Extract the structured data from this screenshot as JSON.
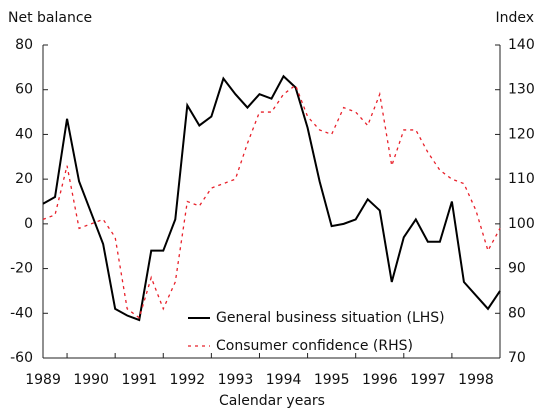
{
  "chart_data": {
    "type": "line",
    "y_label": "Net balance",
    "y2_label": "Index",
    "x_label": "Calendar years",
    "x": [
      1988.5,
      1988.75,
      1989,
      1989.25,
      1989.5,
      1989.75,
      1990,
      1990.25,
      1990.5,
      1990.75,
      1991,
      1991.25,
      1991.5,
      1991.75,
      1992,
      1992.25,
      1992.5,
      1992.75,
      1993,
      1993.25,
      1993.5,
      1993.75,
      1994,
      1994.25,
      1994.5,
      1994.75,
      1995,
      1995.25,
      1995.5,
      1995.75,
      1996,
      1996.25,
      1996.5,
      1996.75,
      1997,
      1997.25,
      1997.5,
      1997.75,
      1998
    ],
    "series": [
      {
        "name": "General business situation (LHS)",
        "color": "#000000",
        "dash": false,
        "values": [
          9,
          12,
          47,
          19,
          5,
          -9,
          -38,
          -41,
          -43,
          -12,
          -12,
          2,
          53,
          44,
          48,
          65,
          58,
          52,
          58,
          56,
          66,
          61,
          43,
          19,
          -1,
          0,
          2,
          11,
          6,
          -26,
          -6,
          2,
          -8,
          -8,
          10,
          -26,
          -32,
          -38,
          -30
        ]
      },
      {
        "name": "Consumer confidence (RHS)",
        "color": "#e8202a",
        "dash": true,
        "axis": "y2",
        "values": [
          101,
          102,
          113,
          99,
          100,
          101,
          97,
          81,
          79,
          88,
          81,
          87,
          105,
          104,
          108,
          109,
          110,
          118,
          125,
          125,
          129,
          131,
          124,
          121,
          120,
          126,
          125,
          122,
          129,
          113,
          121,
          121,
          116,
          112,
          110,
          109,
          103,
          94,
          99
        ]
      }
    ],
    "xlim": [
      1988.5,
      1998
    ],
    "xticks": [
      1989,
      1990,
      1991,
      1992,
      1993,
      1994,
      1995,
      1996,
      1997,
      1998
    ],
    "ylim": [
      -60,
      80
    ],
    "yticks": [
      -60,
      -40,
      -20,
      0,
      20,
      40,
      60,
      80
    ],
    "y2lim": [
      70,
      140
    ],
    "y2ticks": [
      70,
      80,
      90,
      100,
      110,
      120,
      130,
      140
    ],
    "legend": "lower right"
  }
}
